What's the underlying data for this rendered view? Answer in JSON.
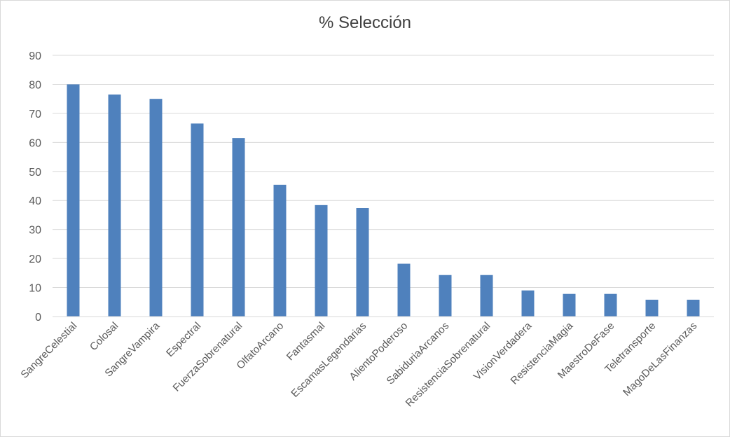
{
  "chart_data": {
    "type": "bar",
    "title": "% Selección",
    "xlabel": "",
    "ylabel": "",
    "ylim": [
      0,
      90
    ],
    "yticks": [
      0,
      10,
      20,
      30,
      40,
      50,
      60,
      70,
      80,
      90
    ],
    "grid": true,
    "legend": "none",
    "bar_color": "#4f81bd",
    "categories": [
      "SangreCelestial",
      "Colosal",
      "SangreVampira",
      "Espectral",
      "FuerzaSobrenatural",
      "OlfatoArcano",
      "Fantasmal",
      "EscamasLegendarias",
      "AlientoPoderoso",
      "SabiduriaArcanos",
      "ResistenciaSobrenatural",
      "VisionVerdadera",
      "ResistenciaMagia",
      "MaestroDeFase",
      "Teletransporte",
      "MagoDeLasFinanzas"
    ],
    "values": [
      80,
      76.5,
      75,
      66.5,
      61.5,
      45.4,
      38.4,
      37.4,
      18.2,
      14.3,
      14.3,
      9,
      7.8,
      7.8,
      5.8,
      5.8
    ]
  }
}
